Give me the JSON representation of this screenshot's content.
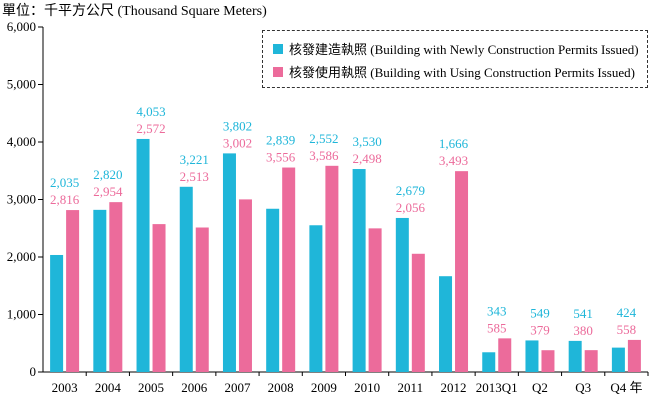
{
  "unit_label": "單位：千平方公尺 (Thousand Square Meters)",
  "legend": {
    "items": [
      {
        "label": "核發建造執照 (Building with Newly Construction Permits Issued)",
        "color": "#1fb6d9"
      },
      {
        "label": "核發使用執照 (Building with Using Construction Permits Issued)",
        "color": "#ec6b9b"
      }
    ]
  },
  "chart_data": {
    "type": "bar",
    "title": "",
    "xlabel": "",
    "ylabel": "單位：千平方公尺 (Thousand Square Meters)",
    "ylim": [
      0,
      6000
    ],
    "yticks": [
      0,
      1000,
      2000,
      3000,
      4000,
      5000,
      6000
    ],
    "ytick_labels": [
      "0",
      "1,000",
      "2,000",
      "3,000",
      "4,000",
      "5,000",
      "6,000"
    ],
    "grid": false,
    "legend_position": "top-right",
    "categories": [
      "2003",
      "2004",
      "2005",
      "2006",
      "2007",
      "2008",
      "2009",
      "2010",
      "2011",
      "2012",
      "2013Q1",
      "Q2",
      "Q3",
      "Q4 年"
    ],
    "series": [
      {
        "name": "核發建造執照 (Building with Newly Construction Permits Issued)",
        "color": "#1fb6d9",
        "values": [
          2035,
          2820,
          4053,
          3221,
          3802,
          2839,
          2552,
          3530,
          2679,
          1666,
          343,
          549,
          541,
          424
        ],
        "value_labels": [
          "2,035",
          "2,820",
          "4,053",
          "3,221",
          "3,802",
          "2,839",
          "2,552",
          "3,530",
          "2,679",
          "1,666",
          "343",
          "549",
          "541",
          "424"
        ]
      },
      {
        "name": "核發使用執照 (Building with Using Construction Permits Issued)",
        "color": "#ec6b9b",
        "values": [
          2816,
          2954,
          2572,
          2513,
          3002,
          3556,
          3586,
          2498,
          2056,
          3493,
          585,
          379,
          380,
          558
        ],
        "value_labels": [
          "2,816",
          "2,954",
          "2,572",
          "2,513",
          "3,002",
          "3,556",
          "3,586",
          "2,498",
          "2,056",
          "3,493",
          "585",
          "379",
          "380",
          "558"
        ]
      }
    ]
  }
}
